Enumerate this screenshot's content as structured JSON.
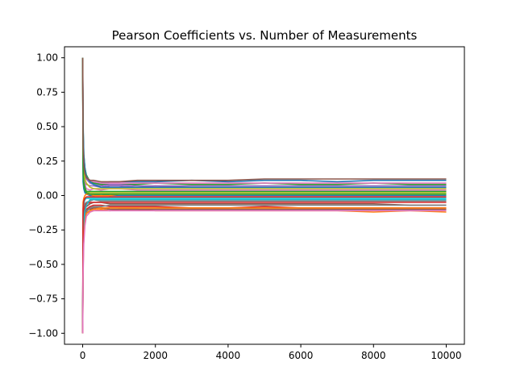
{
  "chart_data": {
    "type": "line",
    "title": "Pearson Coefficients vs. Number of Measurements",
    "xlabel": "",
    "ylabel": "",
    "xlim": [
      -500,
      10500
    ],
    "ylim": [
      -1.08,
      1.08
    ],
    "x_ticks": [
      0,
      2000,
      4000,
      6000,
      8000,
      10000
    ],
    "x_tick_labels": [
      "0",
      "2000",
      "4000",
      "6000",
      "8000",
      "10000"
    ],
    "y_ticks": [
      -1.0,
      -0.75,
      -0.5,
      -0.25,
      0.0,
      0.25,
      0.5,
      0.75,
      1.0
    ],
    "y_tick_labels": [
      "−1.00",
      "−0.75",
      "−0.50",
      "−0.25",
      "0.00",
      "0.25",
      "0.50",
      "0.75",
      "1.00"
    ],
    "grid": false,
    "legend": false,
    "x": [
      2,
      10,
      30,
      60,
      100,
      200,
      300,
      500,
      750,
      1000,
      1500,
      2000,
      3000,
      4000,
      5000,
      6000,
      7000,
      8000,
      9000,
      10000
    ],
    "series": [
      {
        "color": "#1f77b4",
        "values": [
          1.0,
          0.35,
          0.2,
          0.17,
          0.12,
          0.1,
          0.09,
          0.09,
          0.1,
          0.1,
          0.1,
          0.1,
          0.11,
          0.1,
          0.11,
          0.11,
          0.1,
          0.11,
          0.11,
          0.11
        ]
      },
      {
        "color": "#ff7f0e",
        "values": [
          -1.0,
          -0.5,
          -0.3,
          -0.2,
          -0.15,
          -0.12,
          -0.11,
          -0.1,
          -0.11,
          -0.1,
          -0.1,
          -0.11,
          -0.11,
          -0.11,
          -0.11,
          -0.11,
          -0.11,
          -0.12,
          -0.11,
          -0.12
        ]
      },
      {
        "color": "#2ca02c",
        "values": [
          1.0,
          0.5,
          0.3,
          0.2,
          0.15,
          0.1,
          0.09,
          0.08,
          0.08,
          0.08,
          0.08,
          0.09,
          0.08,
          0.08,
          0.09,
          0.08,
          0.08,
          0.09,
          0.08,
          0.08
        ]
      },
      {
        "color": "#d62728",
        "values": [
          -1.0,
          -0.4,
          -0.25,
          -0.15,
          -0.1,
          -0.08,
          -0.07,
          -0.07,
          -0.08,
          -0.08,
          -0.08,
          -0.08,
          -0.09,
          -0.09,
          -0.08,
          -0.09,
          -0.09,
          -0.09,
          -0.09,
          -0.09
        ]
      },
      {
        "color": "#9467bd",
        "values": [
          1.0,
          0.3,
          0.15,
          0.1,
          0.08,
          0.07,
          0.07,
          0.06,
          0.07,
          0.07,
          0.06,
          0.07,
          0.06,
          0.06,
          0.06,
          0.06,
          0.06,
          0.06,
          0.06,
          0.06
        ]
      },
      {
        "color": "#8c564b",
        "values": [
          -1.0,
          -0.3,
          -0.15,
          -0.1,
          -0.08,
          -0.06,
          -0.05,
          -0.05,
          -0.06,
          -0.06,
          -0.06,
          -0.06,
          -0.06,
          -0.06,
          -0.06,
          -0.06,
          -0.06,
          -0.06,
          -0.07,
          -0.07
        ]
      },
      {
        "color": "#e377c2",
        "values": [
          1.0,
          0.2,
          0.12,
          0.08,
          0.05,
          0.04,
          0.05,
          0.04,
          0.05,
          0.05,
          0.04,
          0.04,
          0.04,
          0.04,
          0.04,
          0.04,
          0.04,
          0.04,
          0.04,
          0.04
        ]
      },
      {
        "color": "#7f7f7f",
        "values": [
          -1.0,
          -0.2,
          -0.1,
          -0.06,
          -0.05,
          -0.04,
          -0.03,
          -0.04,
          -0.04,
          -0.04,
          -0.04,
          -0.04,
          -0.04,
          -0.04,
          -0.04,
          -0.04,
          -0.04,
          -0.04,
          -0.04,
          -0.04
        ]
      },
      {
        "color": "#bcbd22",
        "values": [
          1.0,
          0.15,
          0.08,
          0.05,
          0.03,
          0.02,
          0.02,
          0.02,
          0.02,
          0.02,
          0.02,
          0.02,
          0.02,
          0.02,
          0.02,
          0.02,
          0.02,
          0.02,
          0.02,
          0.02
        ]
      },
      {
        "color": "#17becf",
        "values": [
          -1.0,
          -0.15,
          -0.06,
          -0.03,
          -0.02,
          -0.02,
          -0.02,
          -0.02,
          -0.02,
          -0.02,
          -0.02,
          -0.02,
          -0.02,
          -0.02,
          -0.02,
          -0.02,
          -0.02,
          -0.02,
          -0.02,
          -0.02
        ]
      },
      {
        "color": "#1f77b4",
        "values": [
          1.0,
          0.1,
          0.05,
          0.02,
          0.01,
          0.0,
          0.0,
          0.01,
          0.0,
          0.0,
          0.0,
          0.0,
          0.0,
          0.0,
          0.0,
          0.0,
          0.0,
          0.0,
          0.0,
          0.0
        ]
      },
      {
        "color": "#ff7f0e",
        "values": [
          -1.0,
          -0.05,
          -0.02,
          0.0,
          0.01,
          0.01,
          0.0,
          0.0,
          0.0,
          0.01,
          0.01,
          0.01,
          0.01,
          0.01,
          0.01,
          0.01,
          0.01,
          0.01,
          0.01,
          0.01
        ]
      },
      {
        "color": "#2ca02c",
        "values": [
          1.0,
          0.25,
          0.1,
          0.06,
          0.03,
          0.03,
          0.03,
          0.03,
          0.03,
          0.03,
          0.03,
          0.03,
          0.03,
          0.03,
          0.03,
          0.03,
          0.03,
          0.03,
          0.03,
          0.03
        ]
      },
      {
        "color": "#d62728",
        "values": [
          -1.0,
          -0.25,
          -0.12,
          -0.08,
          -0.06,
          -0.05,
          -0.05,
          -0.05,
          -0.05,
          -0.05,
          -0.05,
          -0.05,
          -0.05,
          -0.05,
          -0.05,
          -0.05,
          -0.05,
          -0.05,
          -0.05,
          -0.05
        ]
      },
      {
        "color": "#9467bd",
        "values": [
          1.0,
          0.4,
          0.25,
          0.15,
          0.12,
          0.09,
          0.08,
          0.07,
          0.08,
          0.08,
          0.07,
          0.07,
          0.07,
          0.07,
          0.07,
          0.07,
          0.07,
          0.07,
          0.07,
          0.07
        ]
      },
      {
        "color": "#8c564b",
        "values": [
          -1.0,
          -0.35,
          -0.2,
          -0.12,
          -0.1,
          -0.1,
          -0.09,
          -0.09,
          -0.1,
          -0.1,
          -0.1,
          -0.1,
          -0.1,
          -0.1,
          -0.1,
          -0.1,
          -0.1,
          -0.1,
          -0.1,
          -0.1
        ]
      },
      {
        "color": "#e377c2",
        "values": [
          1.0,
          0.45,
          0.28,
          0.18,
          0.13,
          0.11,
          0.1,
          0.09,
          0.09,
          0.09,
          0.09,
          0.09,
          0.09,
          0.09,
          0.09,
          0.09,
          0.09,
          0.09,
          0.09,
          0.09
        ]
      },
      {
        "color": "#7f7f7f",
        "values": [
          -1.0,
          -0.45,
          -0.25,
          -0.16,
          -0.12,
          -0.09,
          -0.08,
          -0.08,
          -0.07,
          -0.07,
          -0.07,
          -0.07,
          -0.07,
          -0.07,
          -0.07,
          -0.07,
          -0.07,
          -0.07,
          -0.07,
          -0.07
        ]
      },
      {
        "color": "#bcbd22",
        "values": [
          1.0,
          0.3,
          0.18,
          0.12,
          0.09,
          0.06,
          0.05,
          0.05,
          0.05,
          0.05,
          0.05,
          0.05,
          0.05,
          0.05,
          0.05,
          0.05,
          0.05,
          0.05,
          0.05,
          0.05
        ]
      },
      {
        "color": "#17becf",
        "values": [
          -1.0,
          -0.3,
          -0.18,
          -0.11,
          -0.07,
          -0.03,
          -0.03,
          -0.03,
          -0.03,
          -0.03,
          -0.03,
          -0.03,
          -0.03,
          -0.03,
          -0.03,
          -0.03,
          -0.03,
          -0.03,
          -0.03,
          -0.03
        ]
      },
      {
        "color": "#1f77b4",
        "values": [
          1.0,
          0.55,
          0.3,
          0.2,
          0.14,
          0.1,
          0.08,
          0.06,
          0.06,
          0.06,
          0.06,
          0.06,
          0.06,
          0.06,
          0.06,
          0.06,
          0.06,
          0.06,
          0.06,
          0.06
        ]
      },
      {
        "color": "#ff7f0e",
        "values": [
          -1.0,
          -0.55,
          -0.3,
          -0.2,
          -0.13,
          -0.11,
          -0.1,
          -0.09,
          -0.09,
          -0.09,
          -0.09,
          -0.09,
          -0.09,
          -0.09,
          -0.09,
          -0.09,
          -0.09,
          -0.09,
          -0.09,
          -0.09
        ]
      },
      {
        "color": "#2ca02c",
        "values": [
          1.0,
          0.2,
          0.08,
          0.04,
          0.02,
          0.01,
          0.01,
          0.01,
          0.01,
          0.01,
          0.01,
          0.01,
          0.01,
          0.01,
          0.01,
          0.01,
          0.01,
          0.01,
          0.01,
          0.01
        ]
      },
      {
        "color": "#d62728",
        "values": [
          -1.0,
          -0.1,
          -0.04,
          -0.02,
          -0.01,
          -0.01,
          -0.01,
          -0.01,
          -0.01,
          -0.01,
          -0.01,
          -0.01,
          -0.01,
          -0.01,
          -0.01,
          -0.01,
          -0.01,
          -0.01,
          -0.01,
          -0.01
        ]
      },
      {
        "color": "#8c564b",
        "values": [
          1.0,
          0.38,
          0.22,
          0.16,
          0.13,
          0.11,
          0.11,
          0.1,
          0.1,
          0.1,
          0.11,
          0.11,
          0.11,
          0.11,
          0.12,
          0.12,
          0.12,
          0.12,
          0.12,
          0.12
        ]
      },
      {
        "color": "#e377c2",
        "values": [
          -1.0,
          -0.6,
          -0.35,
          -0.22,
          -0.15,
          -0.12,
          -0.11,
          -0.11,
          -0.11,
          -0.11,
          -0.11,
          -0.11,
          -0.11,
          -0.11,
          -0.11,
          -0.11,
          -0.11,
          -0.11,
          -0.11,
          -0.11
        ]
      }
    ]
  }
}
